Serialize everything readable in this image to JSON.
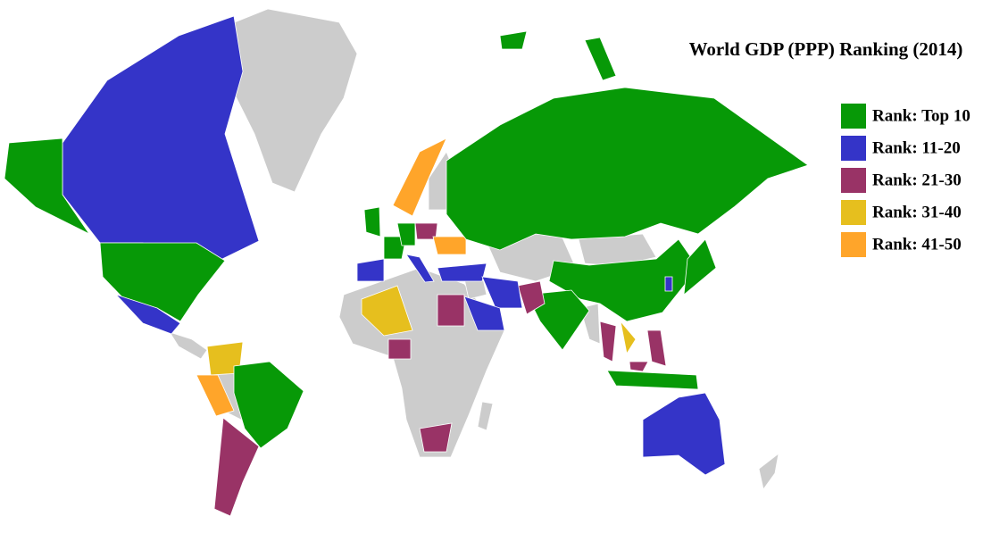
{
  "title": "World GDP (PPP) Ranking (2014)",
  "legend": [
    {
      "label": "Rank: Top 10",
      "color": "#079907"
    },
    {
      "label": "Rank: 11-20",
      "color": "#3434c8"
    },
    {
      "label": "Rank: 21-30",
      "color": "#993366"
    },
    {
      "label": "Rank: 31-40",
      "color": "#e6bf1e"
    },
    {
      "label": "Rank: 41-50",
      "color": "#ffa52a"
    }
  ]
}
